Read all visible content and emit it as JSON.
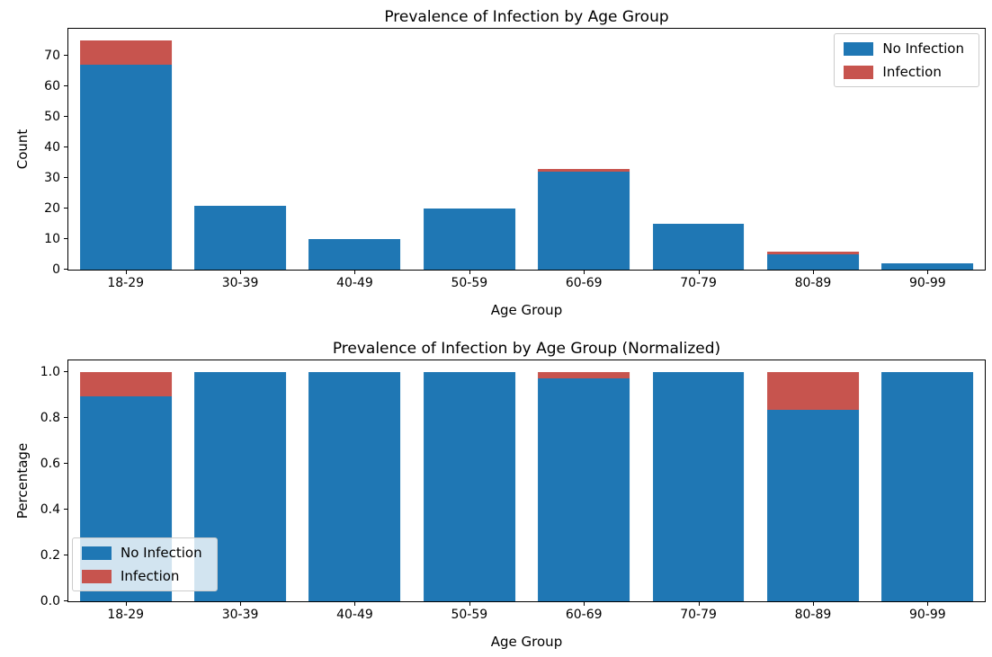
{
  "figure_title": "Prevalence of Infection by Age Group figure",
  "colors": {
    "no_infection": "#1f77b4",
    "infection": "#c7544e",
    "axis": "#000000",
    "legend_border": "#cccccc"
  },
  "chart_data": [
    {
      "type": "bar",
      "stacked": true,
      "title": "Prevalence of Infection by Age Group",
      "xlabel": "Age Group",
      "ylabel": "Count",
      "categories": [
        "18-29",
        "30-39",
        "40-49",
        "50-59",
        "60-69",
        "70-79",
        "80-89",
        "90-99"
      ],
      "series": [
        {
          "name": "No Infection",
          "color": "#1f77b4",
          "values": [
            67,
            21,
            10,
            20,
            32,
            15,
            5,
            2
          ]
        },
        {
          "name": "Infection",
          "color": "#c7544e",
          "values": [
            8,
            0,
            0,
            0,
            1,
            0,
            1,
            0
          ]
        }
      ],
      "ylim": [
        0,
        78.75
      ],
      "yticks": [
        0,
        10,
        20,
        30,
        40,
        50,
        60,
        70
      ],
      "ytick_labels": [
        "0",
        "10",
        "20",
        "30",
        "40",
        "50",
        "60",
        "70"
      ],
      "grid": false,
      "legend_position": "upper-right",
      "bar_width_fraction": 0.8
    },
    {
      "type": "bar",
      "stacked": true,
      "title": "Prevalence of Infection by Age Group (Normalized)",
      "xlabel": "Age Group",
      "ylabel": "Percentage",
      "categories": [
        "18-29",
        "30-39",
        "40-49",
        "50-59",
        "60-69",
        "70-79",
        "80-89",
        "90-99"
      ],
      "series": [
        {
          "name": "No Infection",
          "color": "#1f77b4",
          "values": [
            0.893,
            1.0,
            1.0,
            1.0,
            0.97,
            1.0,
            0.833,
            1.0
          ]
        },
        {
          "name": "Infection",
          "color": "#c7544e",
          "values": [
            0.107,
            0,
            0,
            0,
            0.03,
            0,
            0.167,
            0
          ]
        }
      ],
      "ylim": [
        0,
        1.05
      ],
      "yticks": [
        0.0,
        0.2,
        0.4,
        0.6,
        0.8,
        1.0
      ],
      "ytick_labels": [
        "0.0",
        "0.2",
        "0.4",
        "0.6",
        "0.8",
        "1.0"
      ],
      "grid": false,
      "legend_position": "lower-left",
      "bar_width_fraction": 0.8
    }
  ]
}
